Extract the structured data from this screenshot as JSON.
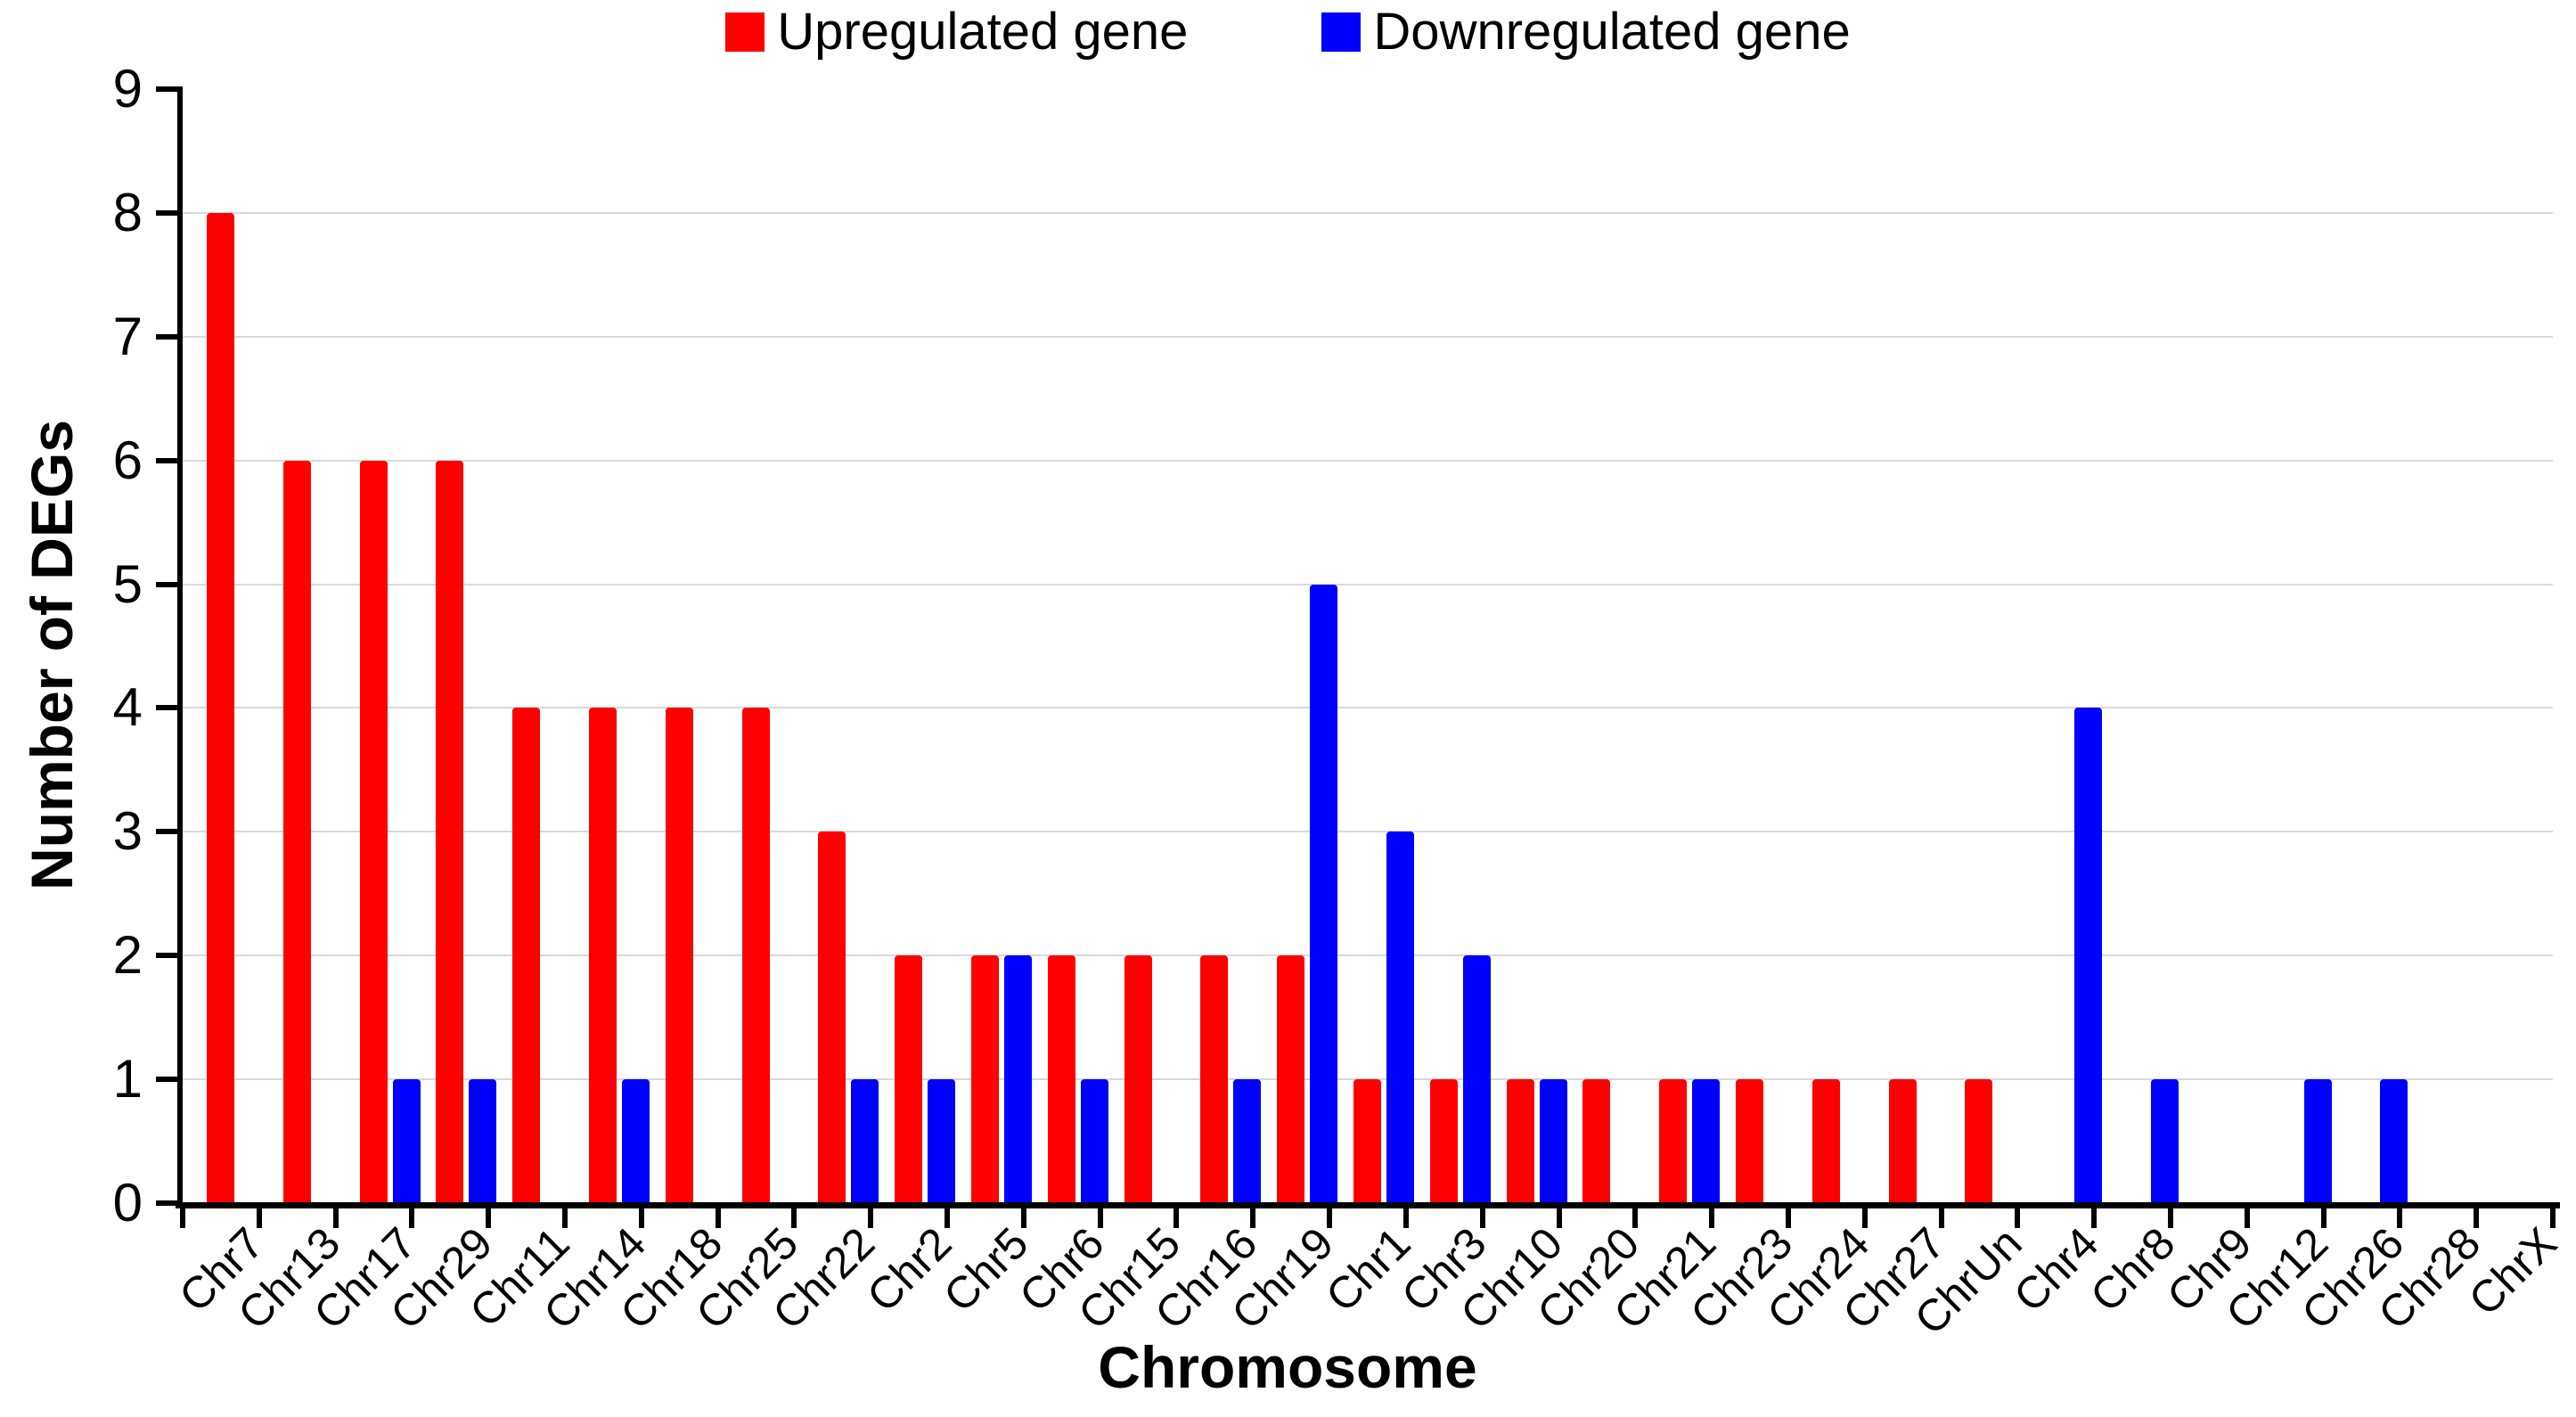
{
  "chart_data": {
    "type": "bar",
    "title": "",
    "xlabel": "Chromosome",
    "ylabel": "Number of DEGs",
    "ylim": [
      0,
      9
    ],
    "yticks": [
      0,
      1,
      2,
      3,
      4,
      5,
      6,
      7,
      8,
      9
    ],
    "grid": "horizontal",
    "grid_color": "#d9d9d9",
    "axis_color": "#000000",
    "background_color": "#ffffff",
    "legend_position": "top-center",
    "categories": [
      "Chr7",
      "Chr13",
      "Chr17",
      "Chr29",
      "Chr11",
      "Chr14",
      "Chr18",
      "Chr25",
      "Chr22",
      "Chr2",
      "Chr5",
      "Chr6",
      "Chr15",
      "Chr16",
      "Chr19",
      "Chr1",
      "Chr3",
      "Chr10",
      "Chr20",
      "Chr21",
      "Chr23",
      "Chr24",
      "Chr27",
      "ChrUn",
      "Chr4",
      "Chr8",
      "Chr9",
      "Chr12",
      "Chr26",
      "Chr28",
      "ChrX"
    ],
    "series": [
      {
        "name": "Upregulated gene",
        "color": "#ff0000",
        "values": [
          8,
          6,
          6,
          6,
          4,
          4,
          4,
          4,
          3,
          2,
          2,
          2,
          2,
          2,
          2,
          1,
          1,
          1,
          1,
          1,
          1,
          1,
          1,
          1,
          0,
          0,
          0,
          0,
          0,
          0,
          0
        ]
      },
      {
        "name": "Downregulated gene",
        "color": "#0000ff",
        "values": [
          0,
          0,
          1,
          1,
          0,
          1,
          0,
          0,
          1,
          1,
          2,
          1,
          0,
          1,
          5,
          3,
          2,
          1,
          0,
          1,
          0,
          0,
          0,
          0,
          4,
          1,
          0,
          1,
          1,
          0,
          0
        ]
      }
    ]
  }
}
